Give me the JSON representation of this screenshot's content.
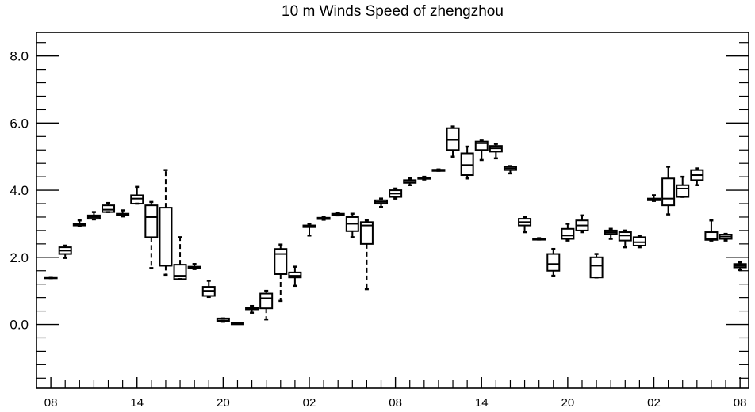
{
  "chart_data": {
    "type": "boxplot",
    "title": "10 m Winds Speed of zhengzhou",
    "xlabel": "",
    "ylabel": "",
    "ylim": [
      -1.9,
      8.7
    ],
    "y_major_ticks": [
      0.0,
      2.0,
      4.0,
      6.0,
      8.0
    ],
    "y_tick_labels": [
      "0.0",
      "2.0",
      "4.0",
      "6.0",
      "8.0"
    ],
    "y_minor_step": 0.4,
    "x_tick_labels": [
      "08",
      "14",
      "20",
      "02",
      "08",
      "14",
      "20",
      "02",
      "08"
    ],
    "x_label_positions_hours": [
      0,
      6,
      12,
      18,
      24,
      30,
      36,
      42,
      48
    ],
    "x_minor_step_hours": 1,
    "xlim_hours": [
      -1.0,
      48.6
    ],
    "grid": false,
    "boxes": [
      {
        "x": 0,
        "whisker_low": 1.38,
        "q1": 1.38,
        "median": 1.4,
        "q3": 1.41,
        "whisker_high": 1.41,
        "dashed": false
      },
      {
        "x": 1,
        "whisker_low": 1.98,
        "q1": 2.1,
        "median": 2.2,
        "q3": 2.3,
        "whisker_high": 2.35,
        "dashed": false
      },
      {
        "x": 2,
        "whisker_low": 2.93,
        "q1": 2.95,
        "median": 2.97,
        "q3": 3.0,
        "whisker_high": 3.1,
        "dashed": false
      },
      {
        "x": 3,
        "whisker_low": 3.13,
        "q1": 3.15,
        "median": 3.2,
        "q3": 3.25,
        "whisker_high": 3.35,
        "dashed": false
      },
      {
        "x": 4,
        "whisker_low": 3.35,
        "q1": 3.35,
        "median": 3.42,
        "q3": 3.55,
        "whisker_high": 3.62,
        "dashed": false
      },
      {
        "x": 5,
        "whisker_low": 3.22,
        "q1": 3.25,
        "median": 3.28,
        "q3": 3.3,
        "whisker_high": 3.4,
        "dashed": false
      },
      {
        "x": 6,
        "whisker_low": 3.6,
        "q1": 3.6,
        "median": 3.75,
        "q3": 3.85,
        "whisker_high": 4.1,
        "dashed": false
      },
      {
        "x": 7,
        "whisker_low": 1.68,
        "q1": 2.6,
        "median": 3.2,
        "q3": 3.55,
        "whisker_high": 3.65,
        "dashed": true
      },
      {
        "x": 8,
        "whisker_low": 1.48,
        "q1": 1.75,
        "median": 1.75,
        "q3": 3.48,
        "whisker_high": 4.6,
        "dashed": true
      },
      {
        "x": 9,
        "whisker_low": 1.35,
        "q1": 1.35,
        "median": 1.45,
        "q3": 1.78,
        "whisker_high": 2.6,
        "dashed": true
      },
      {
        "x": 10,
        "whisker_low": 1.65,
        "q1": 1.68,
        "median": 1.7,
        "q3": 1.72,
        "whisker_high": 1.8,
        "dashed": false
      },
      {
        "x": 11,
        "whisker_low": 0.82,
        "q1": 0.85,
        "median": 1.0,
        "q3": 1.12,
        "whisker_high": 1.3,
        "dashed": false
      },
      {
        "x": 12,
        "whisker_low": 0.08,
        "q1": 0.1,
        "median": 0.12,
        "q3": 0.18,
        "whisker_high": 0.18,
        "dashed": false
      },
      {
        "x": 13,
        "whisker_low": 0.02,
        "q1": 0.02,
        "median": 0.03,
        "q3": 0.04,
        "whisker_high": 0.04,
        "dashed": false
      },
      {
        "x": 14,
        "whisker_low": 0.35,
        "q1": 0.45,
        "median": 0.48,
        "q3": 0.5,
        "whisker_high": 0.55,
        "dashed": false
      },
      {
        "x": 15,
        "whisker_low": 0.15,
        "q1": 0.48,
        "median": 0.78,
        "q3": 0.92,
        "whisker_high": 1.0,
        "dashed": true
      },
      {
        "x": 16,
        "whisker_low": 0.7,
        "q1": 1.5,
        "median": 2.1,
        "q3": 2.25,
        "whisker_high": 2.38,
        "dashed": true
      },
      {
        "x": 17,
        "whisker_low": 1.15,
        "q1": 1.4,
        "median": 1.45,
        "q3": 1.55,
        "whisker_high": 1.72,
        "dashed": false
      },
      {
        "x": 18,
        "whisker_low": 2.65,
        "q1": 2.9,
        "median": 2.92,
        "q3": 2.95,
        "whisker_high": 3.0,
        "dashed": false
      },
      {
        "x": 19,
        "whisker_low": 3.12,
        "q1": 3.14,
        "median": 3.16,
        "q3": 3.18,
        "whisker_high": 3.2,
        "dashed": false
      },
      {
        "x": 20,
        "whisker_low": 3.25,
        "q1": 3.27,
        "median": 3.28,
        "q3": 3.3,
        "whisker_high": 3.32,
        "dashed": false
      },
      {
        "x": 21,
        "whisker_low": 2.6,
        "q1": 2.78,
        "median": 3.0,
        "q3": 3.2,
        "whisker_high": 3.3,
        "dashed": false
      },
      {
        "x": 22,
        "whisker_low": 1.05,
        "q1": 2.4,
        "median": 2.95,
        "q3": 3.05,
        "whisker_high": 3.1,
        "dashed": true
      },
      {
        "x": 23,
        "whisker_low": 3.5,
        "q1": 3.6,
        "median": 3.65,
        "q3": 3.7,
        "whisker_high": 3.75,
        "dashed": false
      },
      {
        "x": 24,
        "whisker_low": 3.75,
        "q1": 3.8,
        "median": 3.9,
        "q3": 4.0,
        "whisker_high": 4.05,
        "dashed": false
      },
      {
        "x": 25,
        "whisker_low": 4.15,
        "q1": 4.22,
        "median": 4.27,
        "q3": 4.3,
        "whisker_high": 4.35,
        "dashed": false
      },
      {
        "x": 26,
        "whisker_low": 4.32,
        "q1": 4.34,
        "median": 4.36,
        "q3": 4.38,
        "whisker_high": 4.4,
        "dashed": false
      },
      {
        "x": 27,
        "whisker_low": 4.58,
        "q1": 4.59,
        "median": 4.6,
        "q3": 4.61,
        "whisker_high": 4.62,
        "dashed": false
      },
      {
        "x": 28,
        "whisker_low": 5.0,
        "q1": 5.2,
        "median": 5.5,
        "q3": 5.85,
        "whisker_high": 5.9,
        "dashed": false
      },
      {
        "x": 29,
        "whisker_low": 4.35,
        "q1": 4.45,
        "median": 4.75,
        "q3": 5.1,
        "whisker_high": 5.3,
        "dashed": false
      },
      {
        "x": 30,
        "whisker_low": 4.9,
        "q1": 5.2,
        "median": 5.4,
        "q3": 5.45,
        "whisker_high": 5.48,
        "dashed": false
      },
      {
        "x": 31,
        "whisker_low": 4.95,
        "q1": 5.15,
        "median": 5.25,
        "q3": 5.32,
        "whisker_high": 5.38,
        "dashed": false
      },
      {
        "x": 32,
        "whisker_low": 4.5,
        "q1": 4.6,
        "median": 4.65,
        "q3": 4.7,
        "whisker_high": 4.72,
        "dashed": false
      },
      {
        "x": 33,
        "whisker_low": 2.75,
        "q1": 2.95,
        "median": 3.05,
        "q3": 3.15,
        "whisker_high": 3.2,
        "dashed": false
      },
      {
        "x": 34,
        "whisker_low": 2.53,
        "q1": 2.54,
        "median": 2.55,
        "q3": 2.56,
        "whisker_high": 2.57,
        "dashed": false
      },
      {
        "x": 35,
        "whisker_low": 1.45,
        "q1": 1.6,
        "median": 1.8,
        "q3": 2.1,
        "whisker_high": 2.25,
        "dashed": false
      },
      {
        "x": 36,
        "whisker_low": 2.5,
        "q1": 2.55,
        "median": 2.65,
        "q3": 2.85,
        "whisker_high": 3.0,
        "dashed": false
      },
      {
        "x": 37,
        "whisker_low": 2.75,
        "q1": 2.8,
        "median": 2.95,
        "q3": 3.1,
        "whisker_high": 3.25,
        "dashed": false
      },
      {
        "x": 38,
        "whisker_low": 1.4,
        "q1": 1.4,
        "median": 1.75,
        "q3": 2.0,
        "whisker_high": 2.1,
        "dashed": false
      },
      {
        "x": 39,
        "whisker_low": 2.55,
        "q1": 2.7,
        "median": 2.75,
        "q3": 2.8,
        "whisker_high": 2.85,
        "dashed": false
      },
      {
        "x": 40,
        "whisker_low": 2.3,
        "q1": 2.5,
        "median": 2.65,
        "q3": 2.75,
        "whisker_high": 2.8,
        "dashed": false
      },
      {
        "x": 41,
        "whisker_low": 2.3,
        "q1": 2.35,
        "median": 2.45,
        "q3": 2.6,
        "whisker_high": 2.65,
        "dashed": false
      },
      {
        "x": 42,
        "whisker_low": 3.68,
        "q1": 3.7,
        "median": 3.72,
        "q3": 3.75,
        "whisker_high": 3.85,
        "dashed": false
      },
      {
        "x": 43,
        "whisker_low": 3.28,
        "q1": 3.55,
        "median": 3.75,
        "q3": 4.35,
        "whisker_high": 4.7,
        "dashed": false
      },
      {
        "x": 44,
        "whisker_low": 3.8,
        "q1": 3.8,
        "median": 4.05,
        "q3": 4.15,
        "whisker_high": 4.4,
        "dashed": false
      },
      {
        "x": 45,
        "whisker_low": 4.15,
        "q1": 4.3,
        "median": 4.45,
        "q3": 4.6,
        "whisker_high": 4.65,
        "dashed": false
      },
      {
        "x": 46,
        "whisker_low": 2.5,
        "q1": 2.52,
        "median": 2.55,
        "q3": 2.75,
        "whisker_high": 3.1,
        "dashed": false
      },
      {
        "x": 47,
        "whisker_low": 2.5,
        "q1": 2.55,
        "median": 2.62,
        "q3": 2.68,
        "whisker_high": 2.7,
        "dashed": false
      },
      {
        "x": 48,
        "whisker_low": 1.62,
        "q1": 1.7,
        "median": 1.75,
        "q3": 1.8,
        "whisker_high": 1.85,
        "dashed": false
      }
    ]
  }
}
